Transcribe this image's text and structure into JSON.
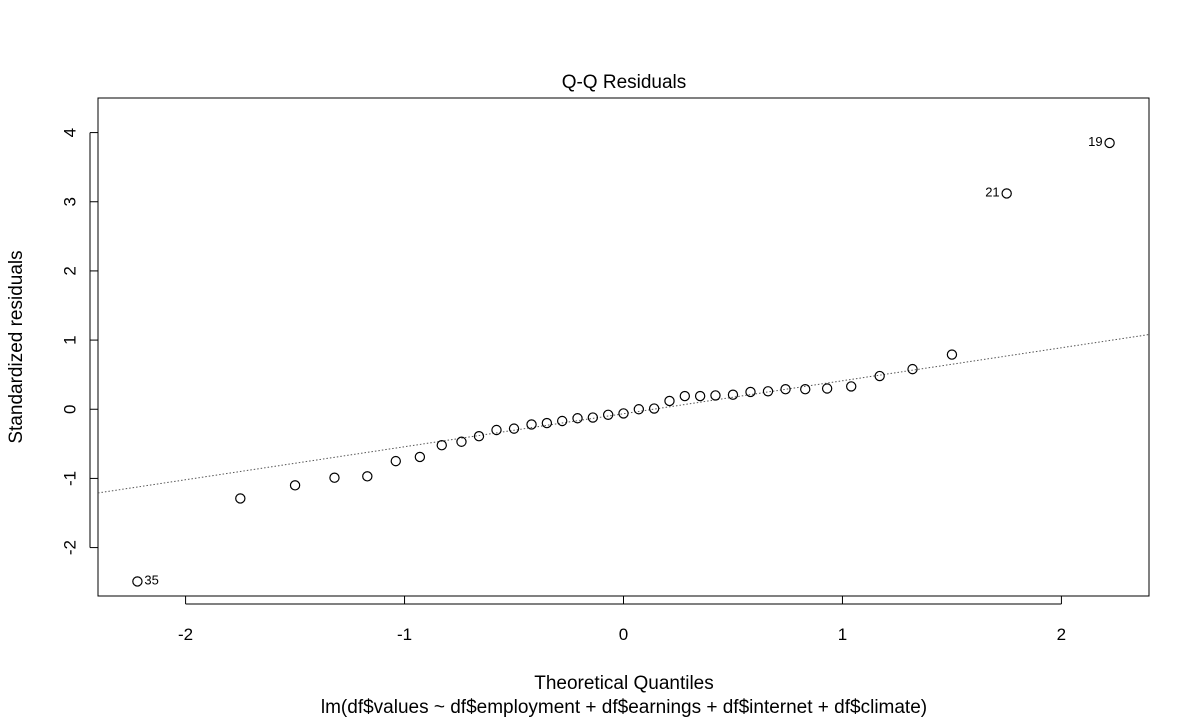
{
  "chart_data": {
    "type": "scatter",
    "title": "Q-Q Residuals",
    "xlabel": "Theoretical Quantiles",
    "ylabel": "Standardized residuals",
    "subtitle": "lm(df$values ~ df$employment + df$earnings + df$internet + df$climate)",
    "xlim": [
      -2.4,
      2.4
    ],
    "ylim": [
      -2.7,
      4.5
    ],
    "x_ticks": [
      -2,
      -1,
      0,
      1,
      2
    ],
    "y_ticks": [
      -2,
      -1,
      0,
      1,
      2,
      3,
      4
    ],
    "x_tick_labels": [
      "-2",
      "-1",
      "0",
      "1",
      "2"
    ],
    "y_tick_labels": [
      "-2",
      "-1",
      "0",
      "1",
      "2",
      "3",
      "4"
    ],
    "grid": false,
    "reference_line": {
      "style": "dotted",
      "x": [
        -2.4,
        2.4
      ],
      "y": [
        -1.21,
        1.08
      ]
    },
    "points": [
      {
        "x": -2.22,
        "y": -2.49,
        "label": "35"
      },
      {
        "x": -1.75,
        "y": -1.29
      },
      {
        "x": -1.5,
        "y": -1.1
      },
      {
        "x": -1.32,
        "y": -0.99
      },
      {
        "x": -1.17,
        "y": -0.97
      },
      {
        "x": -1.04,
        "y": -0.75
      },
      {
        "x": -0.93,
        "y": -0.69
      },
      {
        "x": -0.83,
        "y": -0.52
      },
      {
        "x": -0.74,
        "y": -0.47
      },
      {
        "x": -0.66,
        "y": -0.39
      },
      {
        "x": -0.58,
        "y": -0.3
      },
      {
        "x": -0.5,
        "y": -0.28
      },
      {
        "x": -0.42,
        "y": -0.22
      },
      {
        "x": -0.35,
        "y": -0.2
      },
      {
        "x": -0.28,
        "y": -0.17
      },
      {
        "x": -0.21,
        "y": -0.13
      },
      {
        "x": -0.14,
        "y": -0.12
      },
      {
        "x": -0.07,
        "y": -0.08
      },
      {
        "x": 0.0,
        "y": -0.06
      },
      {
        "x": 0.07,
        "y": 0.0
      },
      {
        "x": 0.14,
        "y": 0.01
      },
      {
        "x": 0.21,
        "y": 0.12
      },
      {
        "x": 0.28,
        "y": 0.19
      },
      {
        "x": 0.35,
        "y": 0.19
      },
      {
        "x": 0.42,
        "y": 0.2
      },
      {
        "x": 0.5,
        "y": 0.21
      },
      {
        "x": 0.58,
        "y": 0.25
      },
      {
        "x": 0.66,
        "y": 0.26
      },
      {
        "x": 0.74,
        "y": 0.29
      },
      {
        "x": 0.83,
        "y": 0.29
      },
      {
        "x": 0.93,
        "y": 0.3
      },
      {
        "x": 1.04,
        "y": 0.33
      },
      {
        "x": 1.17,
        "y": 0.48
      },
      {
        "x": 1.32,
        "y": 0.58
      },
      {
        "x": 1.5,
        "y": 0.79
      },
      {
        "x": 1.75,
        "y": 3.12,
        "label": "21"
      },
      {
        "x": 2.22,
        "y": 3.85,
        "label": "19"
      }
    ]
  }
}
